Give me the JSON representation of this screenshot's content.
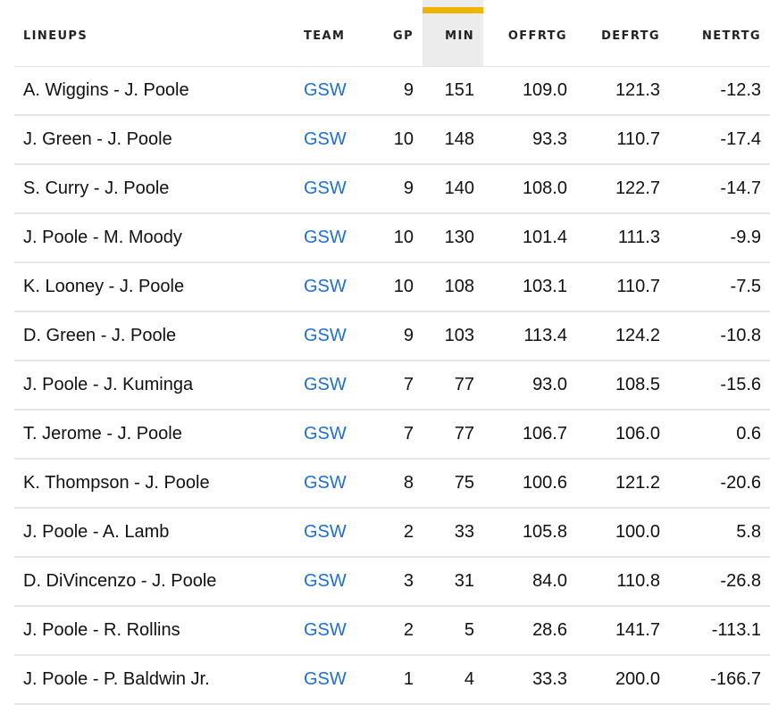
{
  "table": {
    "headers": {
      "lineups": "LINEUPS",
      "team": "TEAM",
      "gp": "GP",
      "min": "MIN",
      "offrtg": "OFFRTG",
      "defrtg": "DEFRTG",
      "netrtg": "NETRTG"
    },
    "sorted_column": "min",
    "colors": {
      "sort_accent": "#f0b400",
      "team_link": "#1d6fd6",
      "sorted_header_bg": "#ececec"
    },
    "rows": [
      {
        "lineup": "A. Wiggins - J. Poole",
        "team": "GSW",
        "gp": "9",
        "min": "151",
        "offrtg": "109.0",
        "defrtg": "121.3",
        "netrtg": "-12.3"
      },
      {
        "lineup": "J. Green - J. Poole",
        "team": "GSW",
        "gp": "10",
        "min": "148",
        "offrtg": "93.3",
        "defrtg": "110.7",
        "netrtg": "-17.4"
      },
      {
        "lineup": "S. Curry - J. Poole",
        "team": "GSW",
        "gp": "9",
        "min": "140",
        "offrtg": "108.0",
        "defrtg": "122.7",
        "netrtg": "-14.7"
      },
      {
        "lineup": "J. Poole - M. Moody",
        "team": "GSW",
        "gp": "10",
        "min": "130",
        "offrtg": "101.4",
        "defrtg": "111.3",
        "netrtg": "-9.9"
      },
      {
        "lineup": "K. Looney - J. Poole",
        "team": "GSW",
        "gp": "10",
        "min": "108",
        "offrtg": "103.1",
        "defrtg": "110.7",
        "netrtg": "-7.5"
      },
      {
        "lineup": "D. Green - J. Poole",
        "team": "GSW",
        "gp": "9",
        "min": "103",
        "offrtg": "113.4",
        "defrtg": "124.2",
        "netrtg": "-10.8"
      },
      {
        "lineup": "J. Poole - J. Kuminga",
        "team": "GSW",
        "gp": "7",
        "min": "77",
        "offrtg": "93.0",
        "defrtg": "108.5",
        "netrtg": "-15.6"
      },
      {
        "lineup": "T. Jerome - J. Poole",
        "team": "GSW",
        "gp": "7",
        "min": "77",
        "offrtg": "106.7",
        "defrtg": "106.0",
        "netrtg": "0.6"
      },
      {
        "lineup": "K. Thompson - J. Poole",
        "team": "GSW",
        "gp": "8",
        "min": "75",
        "offrtg": "100.6",
        "defrtg": "121.2",
        "netrtg": "-20.6"
      },
      {
        "lineup": "J. Poole - A. Lamb",
        "team": "GSW",
        "gp": "2",
        "min": "33",
        "offrtg": "105.8",
        "defrtg": "100.0",
        "netrtg": "5.8"
      },
      {
        "lineup": "D. DiVincenzo - J. Poole",
        "team": "GSW",
        "gp": "3",
        "min": "31",
        "offrtg": "84.0",
        "defrtg": "110.8",
        "netrtg": "-26.8"
      },
      {
        "lineup": "J. Poole - R. Rollins",
        "team": "GSW",
        "gp": "2",
        "min": "5",
        "offrtg": "28.6",
        "defrtg": "141.7",
        "netrtg": "-113.1"
      },
      {
        "lineup": "J. Poole - P. Baldwin Jr.",
        "team": "GSW",
        "gp": "1",
        "min": "4",
        "offrtg": "33.3",
        "defrtg": "200.0",
        "netrtg": "-166.7"
      }
    ]
  }
}
